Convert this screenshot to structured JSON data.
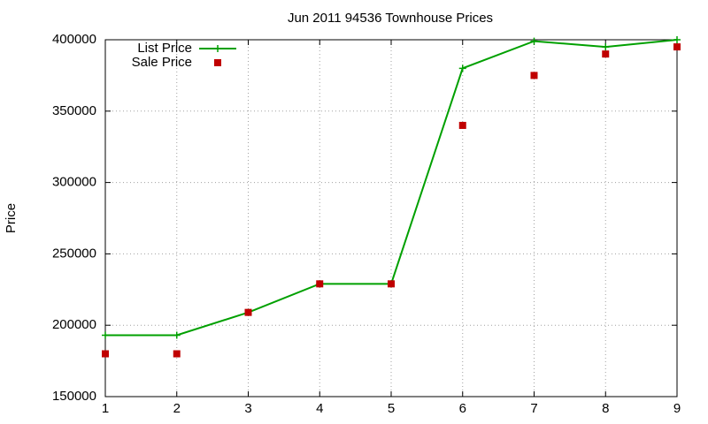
{
  "chart_data": {
    "type": "line",
    "title": "Jun 2011 94536 Townhouse Prices",
    "y_label": "Price",
    "x": [
      1,
      2,
      3,
      4,
      5,
      6,
      7,
      8,
      9
    ],
    "xlim": [
      1,
      9
    ],
    "xticks": [
      1,
      2,
      3,
      4,
      5,
      6,
      7,
      8,
      9
    ],
    "ylim": [
      150000,
      400000
    ],
    "yticks": [
      150000,
      200000,
      250000,
      300000,
      350000,
      400000
    ],
    "grid": true,
    "legend": "top-left",
    "series": [
      {
        "name": "List Price",
        "color": "#00a000",
        "style": "linespoints",
        "values": [
          193000,
          193000,
          209000,
          229000,
          229000,
          380000,
          399000,
          395000,
          400000
        ]
      },
      {
        "name": "Sale Price",
        "color": "#c00000",
        "style": "points",
        "values": [
          180000,
          180000,
          209000,
          229000,
          229000,
          340000,
          375000,
          390000,
          395000
        ]
      }
    ]
  }
}
